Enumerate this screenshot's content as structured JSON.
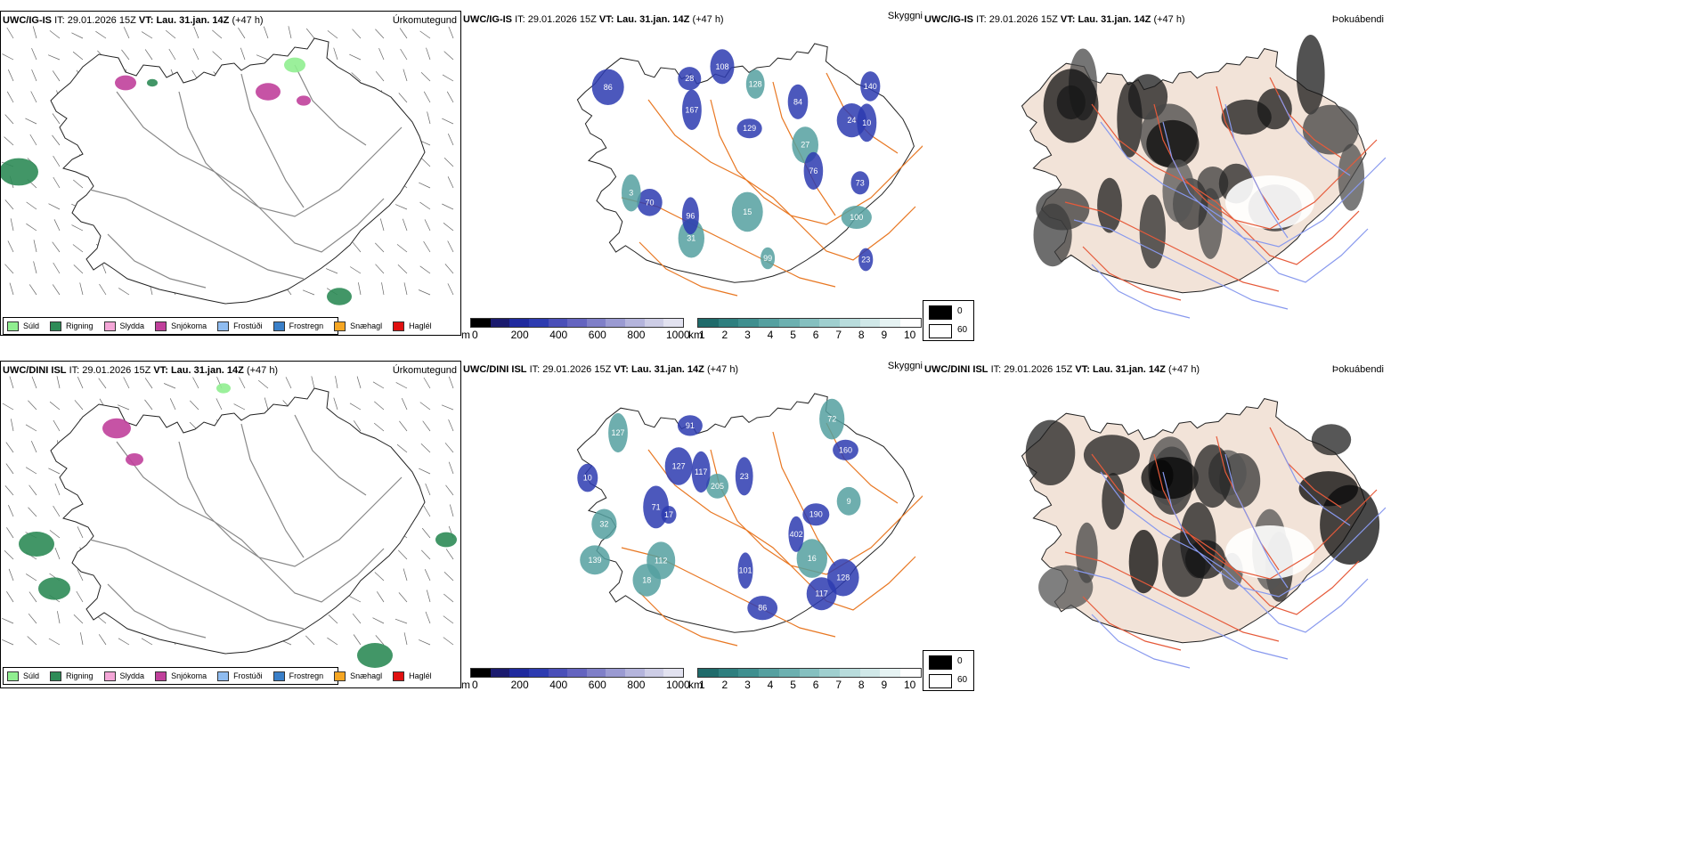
{
  "rows": [
    {
      "model_label": "UWC/IG-IS",
      "it_label": "IT:",
      "it_value": "29.01.2026 15Z",
      "vt_label": "VT:",
      "vt_value": "Lau. 31.jan. 14Z",
      "lead": "(+47 h)"
    },
    {
      "model_label": "UWC/DINI ISL",
      "it_label": "IT:",
      "it_value": "29.01.2026 15Z",
      "vt_label": "VT:",
      "vt_value": "Lau. 31.jan. 14Z",
      "lead": "(+47 h)"
    }
  ],
  "panel_titles": {
    "precip_type": "Úrkomutegund",
    "visibility": "Skyggni",
    "fog": "Þokuábendi"
  },
  "precip_legend": [
    {
      "label": "Súld",
      "color": "#90ee90"
    },
    {
      "label": "Rigning",
      "color": "#2e8b57"
    },
    {
      "label": "Slydda",
      "color": "#f4a6d7"
    },
    {
      "label": "Snjókoma",
      "color": "#c0409b"
    },
    {
      "label": "Frostúði",
      "color": "#8fbcf0"
    },
    {
      "label": "Frostregn",
      "color": "#3a7fc8"
    },
    {
      "label": "Snæhagl",
      "color": "#f5a623"
    },
    {
      "label": "Haglél",
      "color": "#e01010"
    }
  ],
  "visibility_legend": {
    "height_unit": "m",
    "height_ticks": [
      "0",
      "200",
      "400",
      "600",
      "800",
      "1000"
    ],
    "height_colors": [
      "#000000",
      "#1a1a6e",
      "#1f2a9e",
      "#2d3bb0",
      "#4a4fb8",
      "#6464c0",
      "#7f7fc8",
      "#9a9ad2",
      "#b4b4dc",
      "#cdcde6",
      "#e2e2f0"
    ],
    "distance_unit": "km",
    "distance_ticks": [
      "1",
      "2",
      "3",
      "4",
      "5",
      "6",
      "7",
      "8",
      "9",
      "10"
    ],
    "distance_colors": [
      "#1f6b6b",
      "#2e7f7f",
      "#3f8f8f",
      "#55a0a0",
      "#6cb0b0",
      "#85c0c0",
      "#9fcfcf",
      "#b8dcdc",
      "#d0e8e8",
      "#e6f3f3",
      "#ffffff"
    ]
  },
  "fog_legend": {
    "items": [
      {
        "label": "0",
        "color": "#000000"
      },
      {
        "label": "60",
        "color": "#ffffff"
      }
    ]
  },
  "visibility_labels": {
    "top": [
      "27",
      "100",
      "31",
      "96",
      "129",
      "28",
      "73",
      "70",
      "86",
      "99",
      "23",
      "128",
      "108",
      "24",
      "140",
      "15",
      "3",
      "167",
      "10",
      "84",
      "76"
    ],
    "bottom": [
      "10",
      "160",
      "205",
      "190",
      "86",
      "72",
      "71",
      "127",
      "17",
      "117",
      "127",
      "117",
      "91",
      "32",
      "23",
      "18",
      "112",
      "101",
      "139",
      "16",
      "9",
      "128",
      "402"
    ]
  },
  "colors": {
    "roads": "#e87722",
    "roads_fog": "#e65a3a",
    "land_fog": "#f2e3d8",
    "rivers": "#8899ee"
  }
}
